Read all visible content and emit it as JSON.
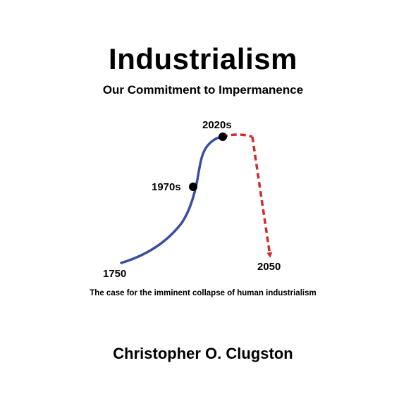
{
  "cover": {
    "title": "Industrialism",
    "subtitle": "Our Commitment to Impermanence",
    "tagline": "The case for the imminent collapse of human industrialism",
    "author": "Christopher O. Clugston"
  },
  "figure": {
    "colors": {
      "historical_curve": "#3a4f9c",
      "projection": "#d22a2a",
      "markers": "#000000"
    },
    "labels": {
      "start": "1750",
      "midpoint": "1970s",
      "peak": "2020s",
      "end": "2050"
    }
  }
}
